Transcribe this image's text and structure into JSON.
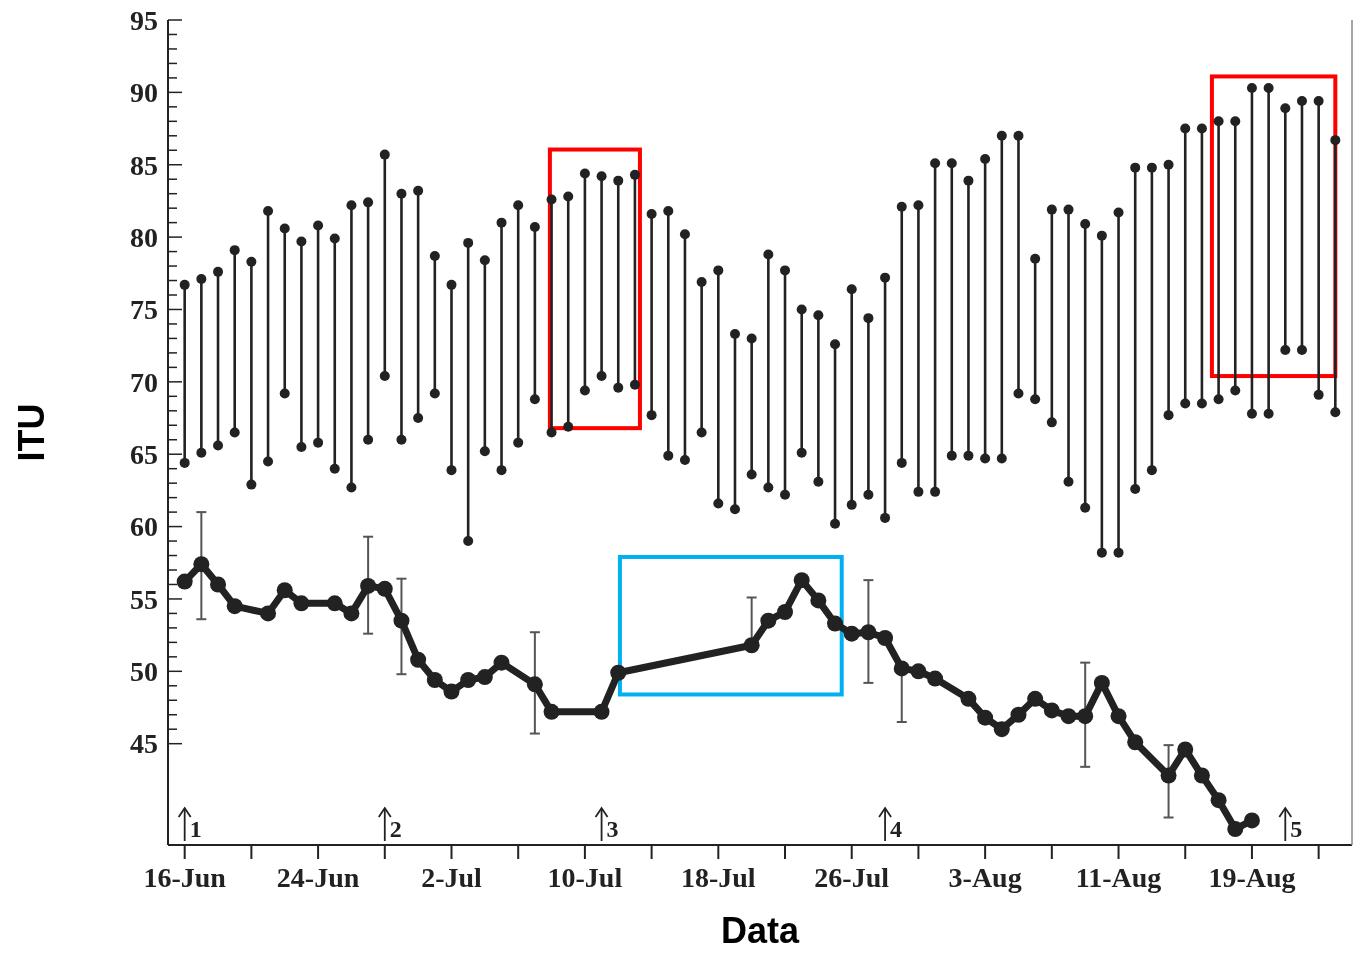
{
  "chart_data": {
    "type": "bar",
    "xlabel": "Data",
    "ylabel": "ITU",
    "xlim": [
      "--06-15",
      "--08-25"
    ],
    "xticks": [
      {
        "value": "--06-16",
        "label": "16-Jun"
      },
      {
        "value": "--06-20",
        "label": null
      },
      {
        "value": "--06-24",
        "label": "24-Jun"
      },
      {
        "value": "--06-28",
        "label": null
      },
      {
        "value": "--07-02",
        "label": "2-Jul"
      },
      {
        "value": "--07-06",
        "label": null
      },
      {
        "value": "--07-10",
        "label": "10-Jul"
      },
      {
        "value": "--07-14",
        "label": null
      },
      {
        "value": "--07-18",
        "label": "18-Jul"
      },
      {
        "value": "--07-22",
        "label": null
      },
      {
        "value": "--07-26",
        "label": "26-Jul"
      },
      {
        "value": "--07-30",
        "label": null
      },
      {
        "value": "--08-03",
        "label": "3-Aug"
      },
      {
        "value": "--08-07",
        "label": null
      },
      {
        "value": "--08-11",
        "label": "11-Aug"
      },
      {
        "value": "--08-15",
        "label": null
      },
      {
        "value": "--08-19",
        "label": "19-Aug"
      },
      {
        "value": "--08-23",
        "label": null
      }
    ],
    "ylim": [
      38,
      95
    ],
    "yticks": [
      45,
      {
        "value": 46,
        "label": null
      },
      {
        "value": 47,
        "label": null
      },
      {
        "value": 48,
        "label": null
      },
      {
        "value": 49,
        "label": null
      },
      50,
      {
        "value": 51,
        "label": null
      },
      {
        "value": 52,
        "label": null
      },
      {
        "value": 53,
        "label": null
      },
      {
        "value": 54,
        "label": null
      },
      55,
      {
        "value": 56,
        "label": null
      },
      {
        "value": 57,
        "label": null
      },
      {
        "value": 58,
        "label": null
      },
      {
        "value": 59,
        "label": null
      },
      60,
      {
        "value": 61,
        "label": null
      },
      {
        "value": 62,
        "label": null
      },
      {
        "value": 63,
        "label": null
      },
      {
        "value": 64,
        "label": null
      },
      65,
      {
        "value": 66,
        "label": null
      },
      {
        "value": 67,
        "label": null
      },
      {
        "value": 68,
        "label": null
      },
      {
        "value": 69,
        "label": null
      },
      70,
      {
        "value": 71,
        "label": null
      },
      {
        "value": 72,
        "label": null
      },
      {
        "value": 73,
        "label": null
      },
      {
        "value": 74,
        "label": null
      },
      75,
      {
        "value": 76,
        "label": null
      },
      {
        "value": 77,
        "label": null
      },
      {
        "value": 78,
        "label": null
      },
      {
        "value": 79,
        "label": null
      },
      80,
      {
        "value": 81,
        "label": null
      },
      {
        "value": 82,
        "label": null
      },
      {
        "value": 83,
        "label": null
      },
      {
        "value": 84,
        "label": null
      },
      85,
      {
        "value": 86,
        "label": null
      },
      {
        "value": 87,
        "label": null
      },
      {
        "value": 88,
        "label": null
      },
      {
        "value": 89,
        "label": null
      },
      90,
      {
        "value": 91,
        "label": null
      },
      {
        "value": 92,
        "label": null
      },
      {
        "value": 93,
        "label": null
      },
      {
        "value": 94,
        "label": null
      },
      95
    ],
    "series": [
      {
        "color": "#222222",
        "x": [
          "--06-16",
          "--06-17",
          "--06-18",
          "--06-19",
          "--06-20",
          "--06-21",
          "--06-22",
          "--06-23",
          "--06-24",
          "--06-25",
          "--06-26",
          "--06-27",
          "--06-28",
          "--06-29",
          "--06-30",
          "--07-01",
          "--07-02",
          "--07-03",
          "--07-04",
          "--07-05",
          "--07-06",
          "--07-07",
          "--07-08",
          "--07-09",
          "--07-10",
          "--07-11",
          "--07-12",
          "--07-13",
          "--07-14",
          "--07-15",
          "--07-16",
          "--07-17",
          "--07-18",
          "--07-19",
          "--07-20",
          "--07-21",
          "--07-22",
          "--07-23",
          "--07-24",
          "--07-25",
          "--07-26",
          "--07-27",
          "--07-28",
          "--07-29",
          "--07-30",
          "--07-31",
          "--08-01",
          "--08-02",
          "--08-03",
          "--08-04",
          "--08-05",
          "--08-06",
          "--08-07",
          "--08-08",
          "--08-09",
          "--08-10",
          "--08-11",
          "--08-12",
          "--08-13",
          "--08-14",
          "--08-15",
          "--08-16",
          "--08-17",
          "--08-18",
          "--08-19",
          "--08-20",
          "--08-21",
          "--08-22",
          "--08-23",
          "--08-24"
        ],
        "base": [
          64.4,
          65.1,
          65.6,
          66.5,
          62.9,
          64.5,
          69.2,
          65.5,
          65.8,
          64.0,
          62.7,
          66.0,
          70.4,
          66.0,
          67.5,
          69.2,
          63.9,
          59.0,
          65.2,
          63.9,
          65.8,
          68.8,
          66.5,
          66.9,
          69.4,
          70.4,
          69.6,
          69.8,
          67.7,
          64.9,
          64.6,
          66.5,
          61.6,
          61.2,
          63.6,
          62.7,
          62.2,
          65.1,
          63.1,
          60.2,
          61.5,
          62.2,
          60.6,
          64.4,
          62.4,
          62.4,
          64.9,
          64.9,
          64.7,
          64.7,
          69.2,
          68.8,
          67.2,
          63.1,
          61.3,
          58.2,
          58.2,
          62.6,
          63.9,
          67.7,
          68.5,
          68.5,
          68.8,
          69.4,
          67.8,
          67.8,
          72.2,
          72.2,
          69.1,
          67.9
        ],
        "values": [
          12.3,
          12.0,
          12.0,
          12.6,
          15.4,
          17.3,
          11.4,
          14.2,
          15.0,
          15.9,
          19.5,
          16.4,
          15.3,
          17.0,
          15.7,
          9.5,
          12.8,
          20.6,
          13.2,
          17.1,
          16.4,
          11.9,
          16.1,
          15.9,
          15.0,
          13.8,
          14.3,
          14.5,
          13.9,
          16.9,
          15.6,
          10.4,
          16.1,
          12.1,
          9.4,
          16.1,
          15.5,
          9.9,
          11.5,
          12.4,
          14.9,
          12.2,
          16.6,
          17.7,
          19.8,
          22.7,
          20.2,
          19.0,
          20.7,
          22.3,
          17.8,
          9.7,
          14.7,
          18.8,
          19.6,
          21.9,
          23.5,
          22.2,
          20.9,
          17.3,
          19.0,
          19.0,
          19.2,
          18.6,
          22.5,
          22.5,
          16.7,
          17.2,
          20.3,
          18.8
        ]
      },
      {
        "type": "line",
        "color": "#222222",
        "marker": "circle",
        "x": [
          "--06-16",
          "--06-17",
          "--06-18",
          "--06-19",
          "--06-21",
          "--06-22",
          "--06-23",
          "--06-25",
          "--06-26",
          "--06-27",
          "--06-28",
          "--06-29",
          "--06-30",
          "--07-01",
          "--07-02",
          "--07-03",
          "--07-04",
          "--07-05",
          "--07-07",
          "--07-08",
          "--07-11",
          "--07-12",
          "--07-20",
          "--07-21",
          "--07-22",
          "--07-23",
          "--07-24",
          "--07-25",
          "--07-26",
          "--07-27",
          "--07-28",
          "--07-29",
          "--07-30",
          "--07-31",
          "--08-02",
          "--08-03",
          "--08-04",
          "--08-05",
          "--08-06",
          "--08-07",
          "--08-08",
          "--08-09",
          "--08-10",
          "--08-11",
          "--08-12",
          "--08-14",
          "--08-15",
          "--08-16",
          "--08-17",
          "--08-18",
          "--08-19"
        ],
        "values": [
          56.2,
          57.4,
          56.0,
          54.5,
          54.0,
          55.6,
          54.7,
          54.7,
          54.0,
          55.9,
          55.7,
          53.5,
          50.8,
          49.4,
          48.6,
          49.4,
          49.6,
          50.6,
          49.1,
          47.2,
          47.2,
          49.9,
          51.8,
          53.5,
          54.1,
          56.3,
          54.9,
          53.3,
          52.6,
          52.7,
          52.3,
          50.2,
          50.0,
          49.5,
          48.1,
          46.8,
          46.0,
          47.0,
          48.1,
          47.3,
          46.9,
          46.9,
          49.2,
          46.9,
          45.1,
          42.8,
          44.6,
          42.8,
          41.1,
          39.1,
          39.7
        ],
        "errors": [
          null,
          [
            53.6,
            61.0
          ],
          null,
          null,
          null,
          null,
          null,
          null,
          null,
          [
            52.6,
            59.3
          ],
          null,
          [
            49.8,
            56.4
          ],
          null,
          null,
          null,
          null,
          null,
          null,
          [
            45.7,
            52.7
          ],
          null,
          null,
          null,
          [
            51.8,
            55.1
          ],
          null,
          null,
          null,
          null,
          null,
          null,
          [
            49.2,
            56.3
          ],
          null,
          [
            46.5,
            50.2
          ],
          null,
          null,
          null,
          null,
          null,
          null,
          null,
          null,
          null,
          [
            43.4,
            50.6
          ],
          null,
          null,
          null,
          [
            39.9,
            44.9
          ],
          null,
          null,
          null,
          null,
          null
        ]
      }
    ],
    "annotations": [
      {
        "text": "1",
        "x": "--06-16"
      },
      {
        "text": "2",
        "x": "--06-28"
      },
      {
        "text": "3",
        "x": "--07-11"
      },
      {
        "text": "4",
        "x": "--07-28"
      },
      {
        "text": "5",
        "x": "--08-21"
      }
    ]
  }
}
